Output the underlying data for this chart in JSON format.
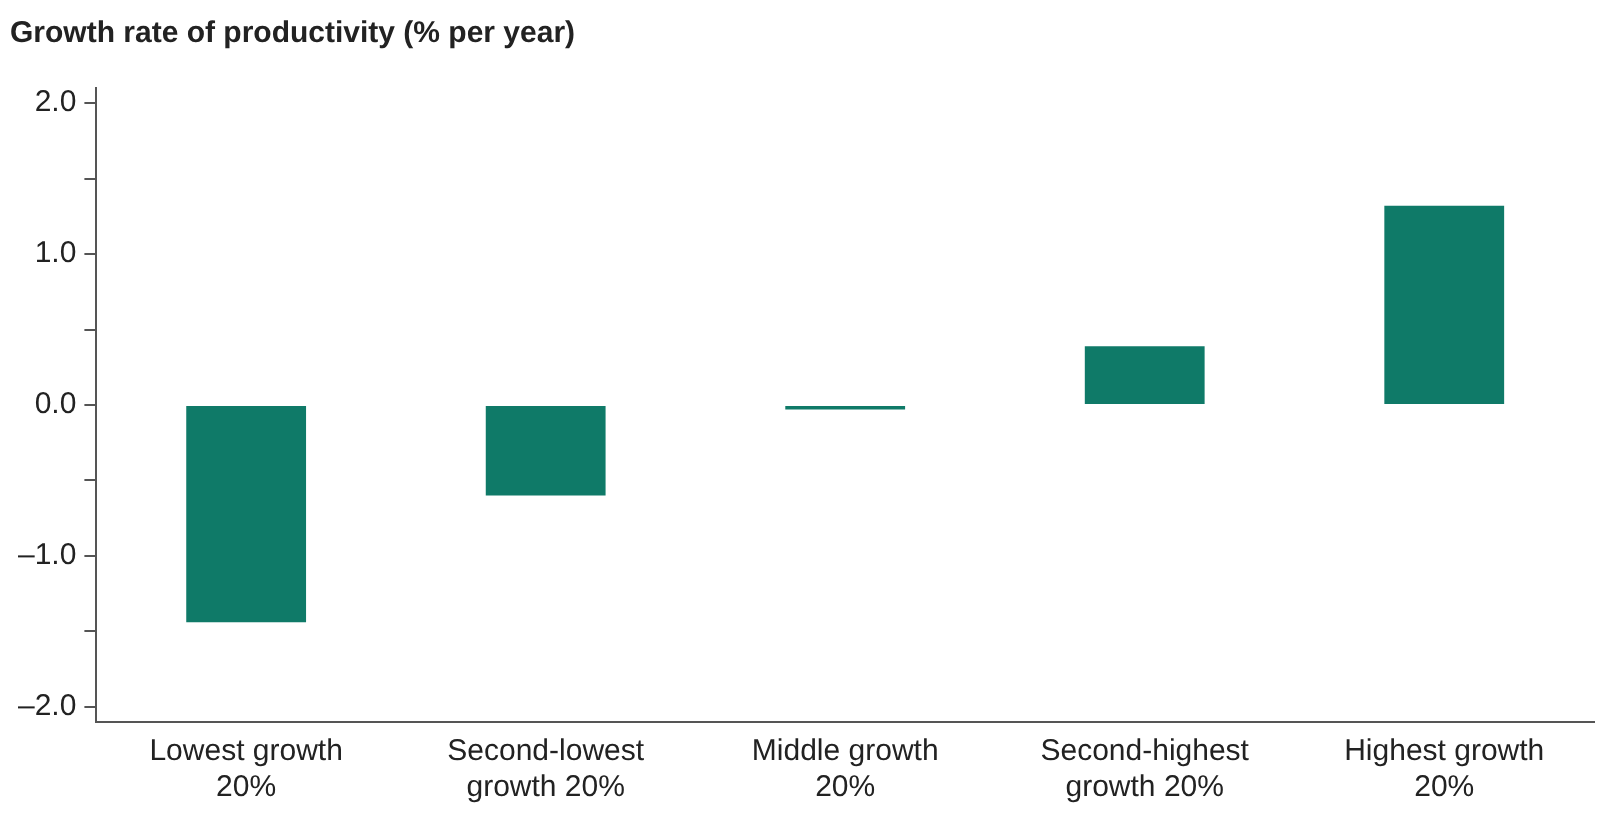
{
  "chart_data": {
    "type": "bar",
    "title": "Growth rate of productivity (% per year)",
    "categories": [
      "Lowest growth 20%",
      "Second-lowest growth 20%",
      "Middle growth 20%",
      "Second-highest growth 20%",
      "Highest growth 20%"
    ],
    "values": [
      -1.44,
      -0.6,
      -0.03,
      0.39,
      1.32
    ],
    "color": "#0f7a68",
    "ylim": [
      -2.1,
      2.1
    ],
    "yticks": [
      {
        "value": -2,
        "label": "–2.0"
      },
      {
        "value": -1.5,
        "label": null
      },
      {
        "value": -1,
        "label": "–1.0"
      },
      {
        "value": -0.5,
        "label": null
      },
      {
        "value": 0,
        "label": "0.0"
      },
      {
        "value": 0.5,
        "label": null
      },
      {
        "value": 1,
        "label": "1.0"
      },
      {
        "value": 1.5,
        "label": null
      },
      {
        "value": 2,
        "label": "2.0"
      }
    ],
    "grid": false
  }
}
